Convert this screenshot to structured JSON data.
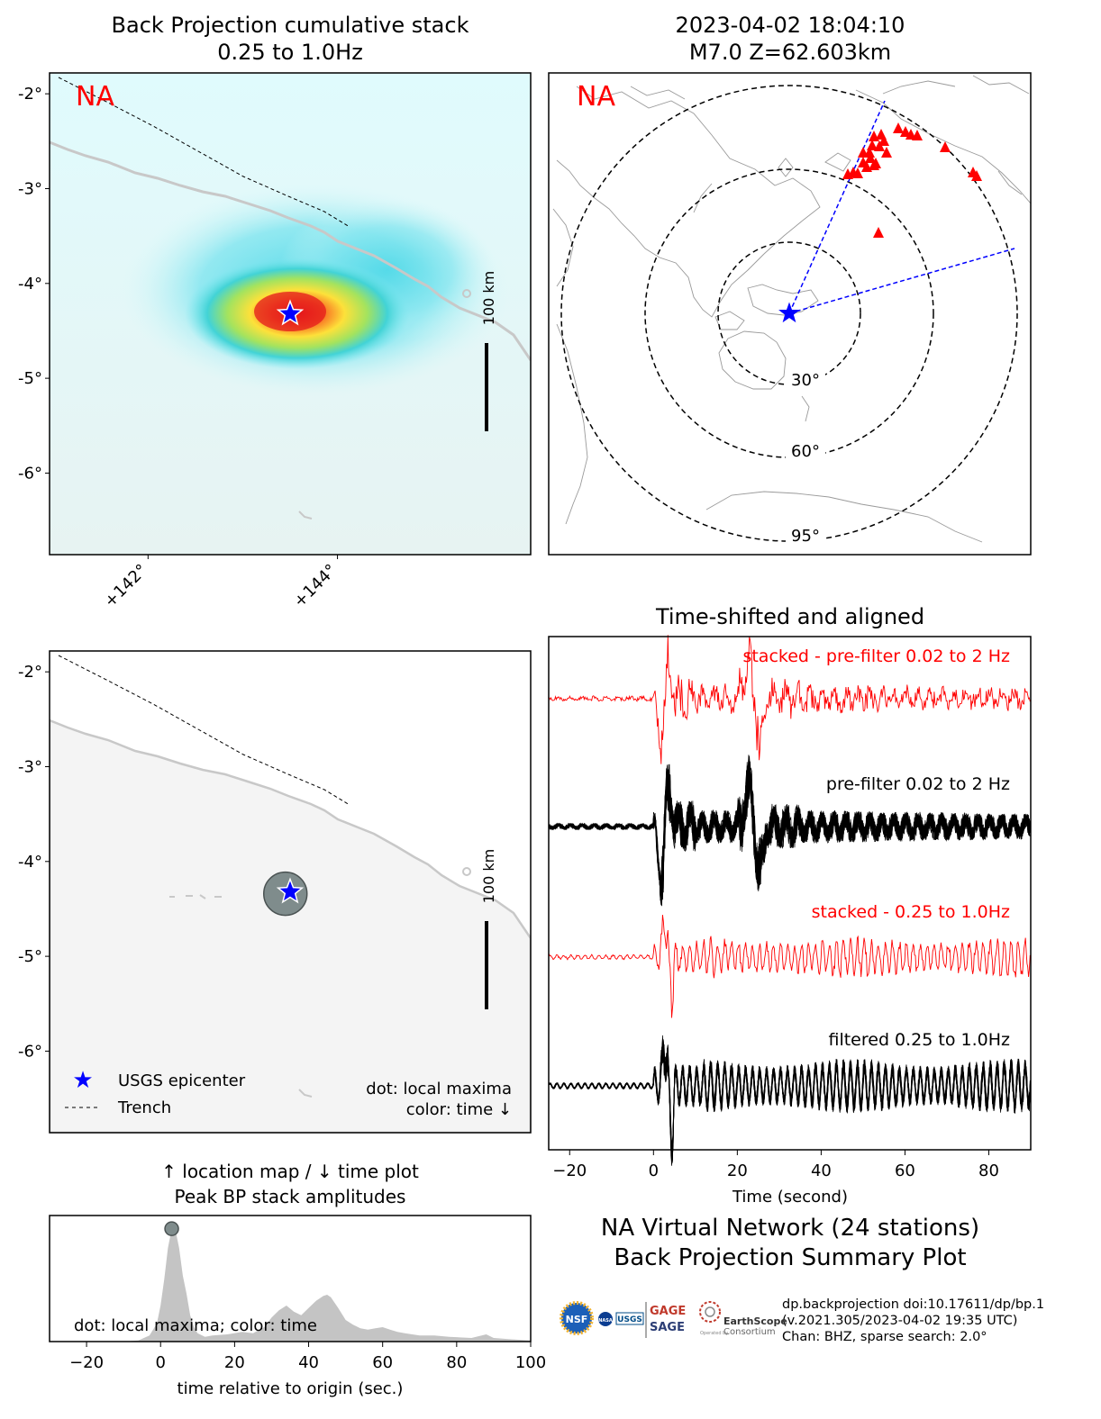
{
  "chart_data": [
    {
      "type": "heatmap",
      "panel": "bp_cumulative_stack",
      "title": [
        "Back Projection cumulative stack",
        "0.25 to 1.0Hz"
      ],
      "network_label": "NA",
      "xlim": [
        140.96,
        146.04
      ],
      "ylim": [
        -6.86,
        -1.78
      ],
      "xticks": [
        142,
        144
      ],
      "xtick_labels": [
        "+142°",
        "+144°"
      ],
      "yticks": [
        -2,
        -3,
        -4,
        -5,
        -6
      ],
      "ytick_labels": [
        "-2°",
        "-3°",
        "-4°",
        "-5°",
        "-6°"
      ],
      "epicenter": {
        "lon": 143.5,
        "lat": -4.32
      },
      "peak": {
        "lon": 143.45,
        "lat": -4.34
      },
      "scalebar_label": "100 km",
      "colors": {
        "land": "#f0f3f2",
        "coast": "#c8c8c8",
        "sea": "#e4f6f6",
        "epicenter": "#0000ff"
      }
    },
    {
      "type": "map",
      "panel": "station_map",
      "title": [
        "2023-04-02 18:04:10",
        "M7.0 Z=62.603km"
      ],
      "network_label": "NA",
      "distance_rings_deg": [
        30,
        60,
        95
      ],
      "ring_labels": [
        "30°",
        "60°",
        "95°"
      ],
      "stations_marker": "red-triangle",
      "stations_count": 24
    },
    {
      "type": "line",
      "panel": "waveforms",
      "title": "Time-shifted and aligned",
      "xlabel": "Time (second)",
      "xlim": [
        -25,
        90
      ],
      "xticks": [
        -20,
        0,
        20,
        40,
        60,
        80
      ],
      "xtick_labels": [
        "−20",
        "0",
        "20",
        "40",
        "60",
        "80"
      ],
      "traces": [
        {
          "label": "stacked - pre-filter 0.02 to 2 Hz",
          "color": "#ff0000",
          "kind": "stacked"
        },
        {
          "label": "pre-filter 0.02 to 2 Hz",
          "color": "#000000",
          "kind": "bundle"
        },
        {
          "label": "stacked - 0.25 to 1.0Hz",
          "color": "#ff0000",
          "kind": "stacked"
        },
        {
          "label": "filtered 0.25 to 1.0Hz",
          "color": "#000000",
          "kind": "bundle"
        }
      ]
    },
    {
      "type": "scatter",
      "panel": "local_maxima_map",
      "xlim": [
        140.96,
        146.04
      ],
      "ylim": [
        -6.86,
        -1.78
      ],
      "yticks": [
        -2,
        -3,
        -4,
        -5,
        -6
      ],
      "ytick_labels": [
        "-2°",
        "-3°",
        "-4°",
        "-5°",
        "-6°"
      ],
      "points": [
        {
          "lon": 143.45,
          "lat": -4.34,
          "time": 3
        }
      ],
      "epicenter": {
        "lon": 143.5,
        "lat": -4.32
      },
      "legend": {
        "placement": "lower left",
        "entries": [
          "USGS epicenter",
          "Trench"
        ]
      },
      "annotation": [
        "dot: local maxima",
        "color: time ↓"
      ],
      "scalebar_label": "100 km"
    },
    {
      "type": "area",
      "panel": "peak_bp_amplitudes",
      "title": [
        "↑ location map / ↓ time plot",
        "Peak BP stack amplitudes"
      ],
      "xlabel": "time relative to origin (sec.)",
      "xlim": [
        -30,
        100
      ],
      "ylim": [
        0,
        1.05
      ],
      "xticks": [
        -20,
        0,
        20,
        40,
        60,
        80,
        100
      ],
      "xtick_labels": [
        "−20",
        "0",
        "20",
        "40",
        "60",
        "80",
        "100"
      ],
      "x": [
        -30,
        -10,
        -6,
        -3,
        -1,
        0,
        1,
        2,
        3,
        4,
        5,
        6,
        7,
        8,
        9,
        10,
        12,
        14,
        18,
        22,
        25,
        28,
        30,
        32,
        34,
        36,
        38,
        40,
        42,
        44,
        45,
        46,
        48,
        50,
        52,
        54,
        56,
        58,
        60,
        62,
        64,
        66,
        70,
        74,
        78,
        84,
        88,
        90,
        94,
        100
      ],
      "y": [
        0,
        0,
        0.01,
        0.05,
        0.15,
        0.3,
        0.52,
        0.78,
        0.94,
        0.93,
        0.78,
        0.55,
        0.4,
        0.22,
        0.12,
        0.07,
        0.04,
        0.05,
        0.06,
        0.08,
        0.07,
        0.12,
        0.2,
        0.26,
        0.3,
        0.25,
        0.22,
        0.28,
        0.34,
        0.38,
        0.39,
        0.37,
        0.28,
        0.18,
        0.14,
        0.11,
        0.1,
        0.11,
        0.12,
        0.1,
        0.08,
        0.07,
        0.05,
        0.05,
        0.04,
        0.03,
        0.06,
        0.03,
        0.02,
        0.01
      ],
      "maxima": [
        {
          "x": 3,
          "y": 0.94
        }
      ],
      "annotation": "dot: local maxima; color: time",
      "colors": {
        "fill": "#c4c4c4",
        "dot": "#7f8c8c"
      }
    }
  ],
  "footer": {
    "title_lines": [
      "NA Virtual Network (24 stations)",
      "Back Projection Summary Plot"
    ],
    "info_lines": [
      "dp.backprojection doi:10.17611/dp/bp.1",
      "(v.2021.305/2023-04-02 19:35 UTC)",
      "Chan: BHZ, sparse search: 2.0°"
    ],
    "logos": [
      "NSF",
      "NASA",
      "USGS",
      "GAGE",
      "SAGE",
      "EarthScope",
      "Operated by",
      "Consortium"
    ]
  }
}
